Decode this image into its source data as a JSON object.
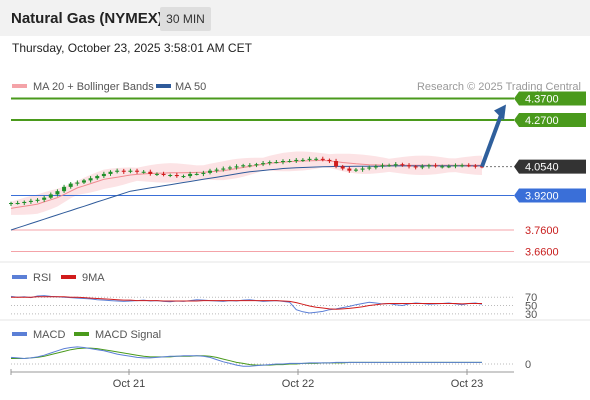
{
  "header": {
    "title": "Natural Gas (NYMEX)",
    "interval": "30 MIN"
  },
  "timestamp": "Thursday, October 23, 2025 3:58:01 AM CET",
  "legend": {
    "bollinger": "MA 20 + Bollinger Bands",
    "ma50": "MA 50"
  },
  "source": "Research © 2025 Trading Central",
  "colors": {
    "resistance": "#4a9a1c",
    "support": "#3a6fd8",
    "pink": "#f4a3a8",
    "ma50": "#2e5a9a",
    "bull": "#1f8f2a",
    "bear": "#d11c1c",
    "arrow": "#2f5f9c",
    "current": "#333333",
    "rsi": "#5b7fd6",
    "ma9": "#d11c1c",
    "macd": "#5b7fd6",
    "signal": "#4a9a1c"
  },
  "chart_data": [
    {
      "type": "candlestick",
      "x_labels": [
        "Oct 21",
        "Oct 22",
        "Oct 23"
      ],
      "ylim": [
        3.63,
        4.4
      ],
      "series": [
        {
          "name": "Price (approx. close)",
          "values": [
            3.885,
            3.885,
            3.89,
            3.895,
            3.9,
            3.91,
            3.925,
            3.94,
            3.96,
            3.975,
            3.98,
            3.99,
            4.0,
            4.01,
            4.02,
            4.03,
            4.035,
            4.03,
            4.035,
            4.03,
            4.03,
            4.02,
            4.02,
            4.015,
            4.015,
            4.01,
            4.01,
            4.02,
            4.02,
            4.025,
            4.035,
            4.04,
            4.045,
            4.05,
            4.055,
            4.06,
            4.06,
            4.065,
            4.07,
            4.075,
            4.075,
            4.08,
            4.08,
            4.085,
            4.085,
            4.09,
            4.09,
            4.085,
            4.08,
            4.055,
            4.045,
            4.035,
            4.04,
            4.045,
            4.05,
            4.055,
            4.06,
            4.06,
            4.065,
            4.06,
            4.055,
            4.05,
            4.055,
            4.06,
            4.055,
            4.055,
            4.055,
            4.06,
            4.06,
            4.058,
            4.055,
            4.054
          ]
        },
        {
          "name": "MA 50",
          "values": [
            3.76,
            3.77,
            3.78,
            3.79,
            3.8,
            3.81,
            3.82,
            3.83,
            3.84,
            3.85,
            3.86,
            3.87,
            3.88,
            3.89,
            3.9,
            3.91,
            3.92,
            3.93,
            3.94,
            3.945,
            3.95,
            3.955,
            3.96,
            3.965,
            3.97,
            3.975,
            3.98,
            3.985,
            3.99,
            3.995,
            4.0,
            4.005,
            4.01,
            4.015,
            4.02,
            4.025,
            4.03,
            4.033,
            4.036,
            4.039,
            4.042,
            4.045,
            4.047,
            4.049,
            4.05,
            4.051,
            4.052,
            4.053,
            4.054,
            4.055,
            4.055,
            4.055,
            4.056,
            4.056,
            4.056,
            4.056,
            4.056,
            4.057,
            4.057,
            4.057,
            4.057,
            4.057,
            4.057,
            4.057,
            4.057,
            4.057,
            4.057,
            4.057,
            4.057,
            4.057,
            4.057,
            4.057
          ]
        },
        {
          "name": "MA 20",
          "values": [
            3.86,
            3.865,
            3.87,
            3.875,
            3.88,
            3.89,
            3.9,
            3.91,
            3.925,
            3.94,
            3.955,
            3.965,
            3.975,
            3.985,
            3.995,
            4.0,
            4.005,
            4.01,
            4.015,
            4.018,
            4.02,
            4.022,
            4.023,
            4.024,
            4.025,
            4.025,
            4.025,
            4.026,
            4.027,
            4.028,
            4.03,
            4.032,
            4.035,
            4.04,
            4.045,
            4.05,
            4.055,
            4.06,
            4.065,
            4.07,
            4.072,
            4.075,
            4.077,
            4.079,
            4.08,
            4.081,
            4.082,
            4.083,
            4.08,
            4.077,
            4.073,
            4.07,
            4.067,
            4.065,
            4.063,
            4.062,
            4.061,
            4.06,
            4.06,
            4.06,
            4.06,
            4.06,
            4.06,
            4.06,
            4.06,
            4.06,
            4.06,
            4.06,
            4.06,
            4.06,
            4.06,
            4.06
          ]
        }
      ],
      "levels": [
        {
          "label": "4.3700",
          "value": 4.37,
          "kind": "resistance"
        },
        {
          "label": "4.2700",
          "value": 4.27,
          "kind": "resistance"
        },
        {
          "label": "4.0540",
          "value": 4.054,
          "kind": "current"
        },
        {
          "label": "3.9200",
          "value": 3.92,
          "kind": "support"
        },
        {
          "label": "3.7600",
          "value": 3.76,
          "kind": "weak-support"
        },
        {
          "label": "3.6600",
          "value": 3.66,
          "kind": "weak-support"
        }
      ]
    },
    {
      "type": "line",
      "legend": [
        "RSI",
        "9MA"
      ],
      "levels": [
        "70",
        "50",
        "30"
      ],
      "ylim": [
        20,
        85
      ],
      "series": [
        {
          "name": "RSI",
          "values": [
            72,
            70,
            71,
            69,
            73,
            74,
            72,
            71,
            70,
            69,
            68,
            67,
            66,
            64,
            63,
            62,
            61,
            60,
            61,
            62,
            63,
            61,
            62,
            60,
            59,
            61,
            60,
            62,
            64,
            63,
            62,
            61,
            60,
            62,
            61,
            63,
            64,
            62,
            60,
            61,
            62,
            60,
            58,
            40,
            35,
            32,
            34,
            36,
            40,
            42,
            45,
            48,
            52,
            55,
            58,
            56,
            54,
            55,
            52,
            50,
            54,
            56,
            55,
            53,
            54,
            55,
            56,
            54,
            52,
            55,
            56,
            53
          ]
        },
        {
          "name": "9MA",
          "values": [
            70,
            70,
            70,
            70,
            71,
            71,
            71,
            71,
            71,
            70,
            70,
            69,
            68,
            67,
            66,
            65,
            64,
            63,
            63,
            62,
            62,
            62,
            62,
            61,
            61,
            61,
            61,
            61,
            61,
            62,
            62,
            62,
            62,
            62,
            62,
            62,
            62,
            62,
            62,
            62,
            62,
            61,
            60,
            57,
            53,
            49,
            46,
            44,
            42,
            41,
            42,
            43,
            45,
            47,
            50,
            52,
            54,
            55,
            55,
            55,
            55,
            55,
            55,
            55,
            55,
            55,
            55,
            55,
            54,
            55,
            55,
            55
          ]
        }
      ]
    },
    {
      "type": "line",
      "legend": [
        "MACD",
        "MACD Signal"
      ],
      "levels": [
        "0"
      ],
      "series": [
        {
          "name": "MACD",
          "values": [
            0.012,
            0.011,
            0.01,
            0.011,
            0.013,
            0.016,
            0.02,
            0.024,
            0.028,
            0.03,
            0.031,
            0.03,
            0.028,
            0.026,
            0.024,
            0.021,
            0.018,
            0.016,
            0.014,
            0.012,
            0.011,
            0.011,
            0.012,
            0.013,
            0.014,
            0.014,
            0.015,
            0.015,
            0.015,
            0.014,
            0.012,
            0.008,
            0.004,
            0.001,
            -0.002,
            -0.004,
            -0.004,
            -0.003,
            -0.002,
            -0.001,
            0,
            0,
            0.001,
            0.001,
            0.001,
            0.002,
            0.002,
            0.002,
            0.002,
            0.003,
            0.003,
            0.003,
            0.003,
            0.003,
            0.003,
            0.003,
            0.003,
            0.003,
            0.003,
            0.003,
            0.003,
            0.003,
            0.003,
            0.003,
            0.003,
            0.003,
            0.003,
            0.003,
            0.003,
            0.003,
            0.003,
            0.003
          ]
        },
        {
          "name": "MACD Signal",
          "values": [
            0.01,
            0.01,
            0.01,
            0.011,
            0.012,
            0.014,
            0.017,
            0.02,
            0.023,
            0.026,
            0.028,
            0.029,
            0.029,
            0.028,
            0.026,
            0.024,
            0.022,
            0.02,
            0.018,
            0.016,
            0.014,
            0.013,
            0.013,
            0.013,
            0.013,
            0.014,
            0.014,
            0.014,
            0.015,
            0.015,
            0.014,
            0.012,
            0.009,
            0.006,
            0.003,
            0.001,
            -0.001,
            -0.002,
            -0.002,
            -0.002,
            -0.001,
            -0.001,
            0,
            0,
            0.001,
            0.001,
            0.001,
            0.002,
            0.002,
            0.002,
            0.002,
            0.003,
            0.003,
            0.003,
            0.003,
            0.003,
            0.003,
            0.003,
            0.003,
            0.003,
            0.003,
            0.003,
            0.003,
            0.003,
            0.003,
            0.003,
            0.003,
            0.003,
            0.003,
            0.003,
            0.003,
            0.003
          ]
        }
      ]
    }
  ]
}
